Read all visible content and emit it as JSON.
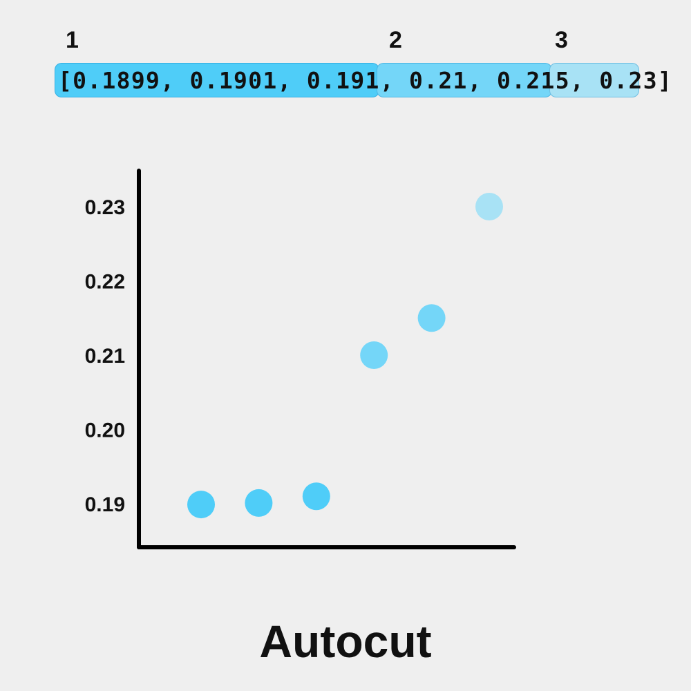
{
  "chart_data": {
    "type": "scatter",
    "title": "Autocut",
    "xlabel": "",
    "ylabel": "",
    "ylim": [
      0.185,
      0.235
    ],
    "y_ticks": [
      "0.19",
      "0.20",
      "0.21",
      "0.22",
      "0.23"
    ],
    "y_tick_values": [
      0.19,
      0.2,
      0.21,
      0.22,
      0.23
    ],
    "grid": false,
    "x": [
      1,
      2,
      3,
      4,
      5,
      6
    ],
    "y": [
      0.1899,
      0.1901,
      0.191,
      0.21,
      0.215,
      0.23
    ],
    "group": [
      1,
      1,
      1,
      2,
      2,
      3
    ],
    "group_colors": {
      "1": "#4fcdf8",
      "2": "#74d6f8",
      "3": "#a8e2f5"
    }
  },
  "array_text": "[0.1899, 0.1901, 0.191, 0.21, 0.215, 0.23]",
  "groups": [
    {
      "label": "1",
      "color": "#4fcdf8"
    },
    {
      "label": "2",
      "color": "#74d6f8"
    },
    {
      "label": "3",
      "color": "#a8e2f5"
    }
  ]
}
